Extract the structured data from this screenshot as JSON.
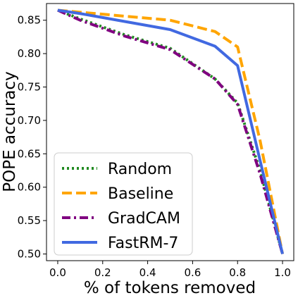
{
  "chart_data": {
    "type": "line",
    "title": "",
    "xlabel": "% of tokens removed",
    "ylabel": "POPE accuracy",
    "xlim": [
      -0.05,
      1.05
    ],
    "ylim": [
      0.49,
      0.875
    ],
    "xticks": [
      0.0,
      0.2,
      0.4,
      0.6,
      0.8,
      1.0
    ],
    "xtick_labels": [
      "0.0",
      "0.2",
      "0.4",
      "0.6",
      "0.8",
      "1.0"
    ],
    "yticks": [
      0.5,
      0.55,
      0.6,
      0.65,
      0.7,
      0.75,
      0.8,
      0.85
    ],
    "ytick_labels": [
      "0.50",
      "0.55",
      "0.60",
      "0.65",
      "0.70",
      "0.75",
      "0.80",
      "0.85"
    ],
    "grid": false,
    "legend_position": "lower-left",
    "series": [
      {
        "name": "Random",
        "color": "#228b22",
        "style": "dotted",
        "x": [
          0.0,
          0.1,
          0.3,
          0.5,
          0.7,
          0.8,
          0.9,
          1.0
        ],
        "y": [
          0.865,
          0.852,
          0.828,
          0.808,
          0.762,
          0.726,
          0.625,
          0.5
        ]
      },
      {
        "name": "Baseline",
        "color": "#ffa500",
        "style": "dashed",
        "x": [
          0.0,
          0.1,
          0.3,
          0.5,
          0.7,
          0.8,
          0.9,
          1.0
        ],
        "y": [
          0.865,
          0.862,
          0.856,
          0.85,
          0.833,
          0.81,
          0.67,
          0.5
        ]
      },
      {
        "name": "GradCAM",
        "color": "#800080",
        "style": "dashdot",
        "x": [
          0.0,
          0.1,
          0.3,
          0.5,
          0.7,
          0.8,
          0.9,
          1.0
        ],
        "y": [
          0.865,
          0.85,
          0.826,
          0.806,
          0.762,
          0.724,
          0.62,
          0.5
        ]
      },
      {
        "name": "FastRM-7",
        "color": "#4169e1",
        "style": "solid",
        "x": [
          0.0,
          0.1,
          0.3,
          0.5,
          0.7,
          0.8,
          0.9,
          1.0
        ],
        "y": [
          0.865,
          0.86,
          0.848,
          0.836,
          0.811,
          0.782,
          0.64,
          0.5
        ]
      }
    ]
  }
}
